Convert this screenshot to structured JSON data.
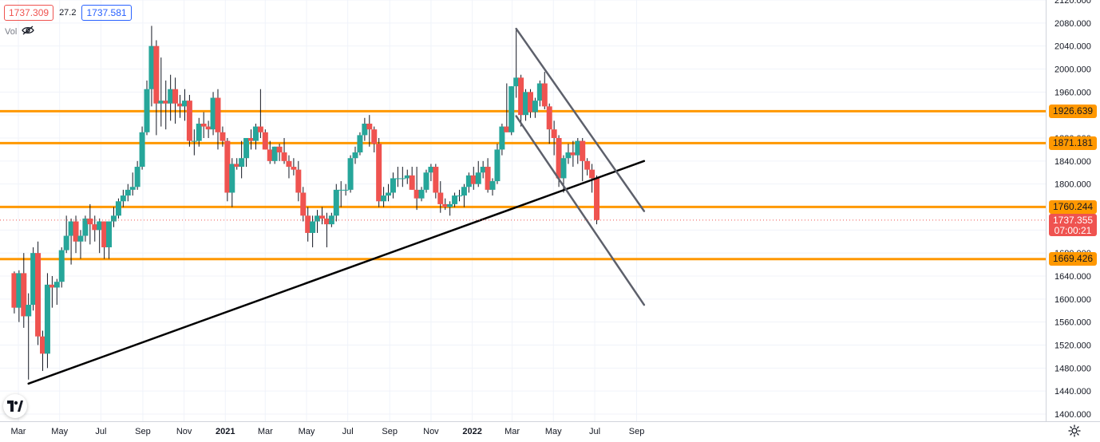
{
  "header": {
    "sell_price": "1737.309",
    "spread": "27.2",
    "buy_price": "1737.581",
    "vol_label": "Vol"
  },
  "colors": {
    "up": "#26a69a",
    "down": "#ef5350",
    "level_line": "#ff9800",
    "trend_line": "#000000",
    "channel_line": "#5d606b",
    "price_marker": "#ef5350"
  },
  "axis": {
    "y_ticks": [
      "2120.000",
      "2080.000",
      "2040.000",
      "2000.000",
      "1960.000",
      "1920.000",
      "1880.000",
      "1840.000",
      "1800.000",
      "1760.000",
      "1720.000",
      "1680.000",
      "1640.000",
      "1600.000",
      "1560.000",
      "1520.000",
      "1480.000",
      "1440.000",
      "1400.000"
    ],
    "x_ticks": [
      "Mar",
      "May",
      "Jul",
      "Sep",
      "Nov",
      "2021",
      "Mar",
      "May",
      "Jul",
      "Sep",
      "Nov",
      "2022",
      "Mar",
      "May",
      "Jul",
      "Sep"
    ]
  },
  "levels": [
    {
      "value": 1926.639,
      "label": "1926.639"
    },
    {
      "value": 1871.181,
      "label": "1871.181"
    },
    {
      "value": 1760.244,
      "label": "1760.244"
    },
    {
      "value": 1669.426,
      "label": "1669.426"
    }
  ],
  "current_price": {
    "value": 1737.355,
    "label": "1737.355",
    "countdown": "07:00:21"
  },
  "chart_data": {
    "type": "candlestick",
    "interval": "weekly",
    "y_range": [
      1400,
      2120
    ],
    "x_range": [
      "2020-02-24",
      "2022-09-12"
    ],
    "candles": [
      {
        "date": "2020-02-24",
        "o": 1645,
        "h": 1648,
        "l": 1575,
        "c": 1585
      },
      {
        "date": "2020-03-02",
        "o": 1585,
        "h": 1650,
        "l": 1560,
        "c": 1645
      },
      {
        "date": "2020-03-09",
        "o": 1645,
        "h": 1680,
        "l": 1550,
        "c": 1570
      },
      {
        "date": "2020-03-16",
        "o": 1570,
        "h": 1610,
        "l": 1460,
        "c": 1590
      },
      {
        "date": "2020-03-23",
        "o": 1590,
        "h": 1690,
        "l": 1580,
        "c": 1680
      },
      {
        "date": "2020-03-30",
        "o": 1680,
        "h": 1700,
        "l": 1520,
        "c": 1535
      },
      {
        "date": "2020-04-06",
        "o": 1535,
        "h": 1545,
        "l": 1475,
        "c": 1505
      },
      {
        "date": "2020-04-13",
        "o": 1505,
        "h": 1645,
        "l": 1480,
        "c": 1625
      },
      {
        "date": "2020-04-20",
        "o": 1625,
        "h": 1640,
        "l": 1585,
        "c": 1620
      },
      {
        "date": "2020-04-27",
        "o": 1620,
        "h": 1635,
        "l": 1590,
        "c": 1630
      },
      {
        "date": "2020-05-04",
        "o": 1630,
        "h": 1690,
        "l": 1620,
        "c": 1685
      },
      {
        "date": "2020-05-11",
        "o": 1685,
        "h": 1745,
        "l": 1680,
        "c": 1710
      },
      {
        "date": "2020-05-18",
        "o": 1710,
        "h": 1740,
        "l": 1660,
        "c": 1735
      },
      {
        "date": "2020-05-25",
        "o": 1735,
        "h": 1745,
        "l": 1680,
        "c": 1700
      },
      {
        "date": "2020-06-01",
        "o": 1700,
        "h": 1720,
        "l": 1670,
        "c": 1710
      },
      {
        "date": "2020-06-08",
        "o": 1710,
        "h": 1745,
        "l": 1700,
        "c": 1740
      },
      {
        "date": "2020-06-15",
        "o": 1740,
        "h": 1765,
        "l": 1695,
        "c": 1730
      },
      {
        "date": "2020-06-22",
        "o": 1730,
        "h": 1745,
        "l": 1700,
        "c": 1720
      },
      {
        "date": "2020-06-29",
        "o": 1720,
        "h": 1740,
        "l": 1680,
        "c": 1735
      },
      {
        "date": "2020-07-06",
        "o": 1735,
        "h": 1735,
        "l": 1670,
        "c": 1690
      },
      {
        "date": "2020-07-13",
        "o": 1690,
        "h": 1735,
        "l": 1670,
        "c": 1735
      },
      {
        "date": "2020-07-20",
        "o": 1735,
        "h": 1760,
        "l": 1725,
        "c": 1745
      },
      {
        "date": "2020-07-27",
        "o": 1745,
        "h": 1775,
        "l": 1740,
        "c": 1770
      },
      {
        "date": "2020-08-03",
        "o": 1770,
        "h": 1790,
        "l": 1760,
        "c": 1780
      },
      {
        "date": "2020-08-10",
        "o": 1780,
        "h": 1800,
        "l": 1770,
        "c": 1790
      },
      {
        "date": "2020-08-17",
        "o": 1790,
        "h": 1820,
        "l": 1780,
        "c": 1795
      },
      {
        "date": "2020-08-24",
        "o": 1795,
        "h": 1840,
        "l": 1790,
        "c": 1830
      },
      {
        "date": "2020-08-31",
        "o": 1830,
        "h": 1900,
        "l": 1825,
        "c": 1890
      },
      {
        "date": "2020-09-07",
        "o": 1890,
        "h": 1980,
        "l": 1885,
        "c": 1965
      },
      {
        "date": "2020-09-14",
        "o": 1965,
        "h": 2075,
        "l": 1935,
        "c": 2040
      },
      {
        "date": "2020-09-21",
        "o": 2040,
        "h": 2050,
        "l": 1885,
        "c": 1940
      },
      {
        "date": "2020-09-28",
        "o": 1940,
        "h": 2020,
        "l": 1900,
        "c": 1945
      },
      {
        "date": "2020-10-05",
        "o": 1945,
        "h": 1980,
        "l": 1895,
        "c": 1940
      },
      {
        "date": "2020-10-12",
        "o": 1940,
        "h": 1990,
        "l": 1910,
        "c": 1965
      },
      {
        "date": "2020-10-19",
        "o": 1965,
        "h": 1985,
        "l": 1905,
        "c": 1940
      },
      {
        "date": "2020-10-26",
        "o": 1940,
        "h": 1955,
        "l": 1915,
        "c": 1935
      },
      {
        "date": "2020-11-02",
        "o": 1935,
        "h": 1965,
        "l": 1910,
        "c": 1945
      },
      {
        "date": "2020-11-09",
        "o": 1945,
        "h": 1955,
        "l": 1865,
        "c": 1875
      },
      {
        "date": "2020-11-16",
        "o": 1875,
        "h": 1895,
        "l": 1850,
        "c": 1875
      },
      {
        "date": "2020-11-23",
        "o": 1875,
        "h": 1915,
        "l": 1865,
        "c": 1905
      },
      {
        "date": "2020-11-30",
        "o": 1905,
        "h": 1925,
        "l": 1880,
        "c": 1900
      },
      {
        "date": "2020-12-07",
        "o": 1900,
        "h": 1910,
        "l": 1880,
        "c": 1895
      },
      {
        "date": "2020-12-14",
        "o": 1895,
        "h": 1960,
        "l": 1885,
        "c": 1950
      },
      {
        "date": "2020-12-21",
        "o": 1950,
        "h": 1965,
        "l": 1860,
        "c": 1890
      },
      {
        "date": "2020-12-28",
        "o": 1890,
        "h": 1900,
        "l": 1865,
        "c": 1875
      },
      {
        "date": "2021-01-04",
        "o": 1875,
        "h": 1880,
        "l": 1770,
        "c": 1785
      },
      {
        "date": "2021-01-11",
        "o": 1785,
        "h": 1845,
        "l": 1760,
        "c": 1835
      },
      {
        "date": "2021-01-18",
        "o": 1835,
        "h": 1845,
        "l": 1825,
        "c": 1830
      },
      {
        "date": "2021-01-25",
        "o": 1830,
        "h": 1875,
        "l": 1810,
        "c": 1845
      },
      {
        "date": "2021-02-01",
        "o": 1845,
        "h": 1880,
        "l": 1830,
        "c": 1880
      },
      {
        "date": "2021-02-08",
        "o": 1880,
        "h": 1895,
        "l": 1860,
        "c": 1875
      },
      {
        "date": "2021-02-15",
        "o": 1875,
        "h": 1905,
        "l": 1860,
        "c": 1900
      },
      {
        "date": "2021-02-22",
        "o": 1900,
        "h": 1965,
        "l": 1880,
        "c": 1890
      },
      {
        "date": "2021-03-01",
        "o": 1890,
        "h": 1895,
        "l": 1860,
        "c": 1860
      },
      {
        "date": "2021-03-08",
        "o": 1860,
        "h": 1875,
        "l": 1835,
        "c": 1840
      },
      {
        "date": "2021-03-15",
        "o": 1840,
        "h": 1865,
        "l": 1835,
        "c": 1865
      },
      {
        "date": "2021-03-22",
        "o": 1865,
        "h": 1870,
        "l": 1840,
        "c": 1855
      },
      {
        "date": "2021-03-29",
        "o": 1855,
        "h": 1880,
        "l": 1835,
        "c": 1840
      },
      {
        "date": "2021-04-05",
        "o": 1840,
        "h": 1850,
        "l": 1810,
        "c": 1830
      },
      {
        "date": "2021-04-12",
        "o": 1830,
        "h": 1845,
        "l": 1815,
        "c": 1825
      },
      {
        "date": "2021-04-19",
        "o": 1825,
        "h": 1840,
        "l": 1770,
        "c": 1785
      },
      {
        "date": "2021-04-26",
        "o": 1785,
        "h": 1795,
        "l": 1735,
        "c": 1745
      },
      {
        "date": "2021-05-03",
        "o": 1745,
        "h": 1760,
        "l": 1700,
        "c": 1715
      },
      {
        "date": "2021-05-10",
        "o": 1715,
        "h": 1745,
        "l": 1690,
        "c": 1735
      },
      {
        "date": "2021-05-17",
        "o": 1735,
        "h": 1755,
        "l": 1715,
        "c": 1745
      },
      {
        "date": "2021-05-24",
        "o": 1745,
        "h": 1760,
        "l": 1730,
        "c": 1740
      },
      {
        "date": "2021-05-31",
        "o": 1740,
        "h": 1750,
        "l": 1690,
        "c": 1730
      },
      {
        "date": "2021-06-07",
        "o": 1730,
        "h": 1750,
        "l": 1725,
        "c": 1745
      },
      {
        "date": "2021-06-14",
        "o": 1745,
        "h": 1800,
        "l": 1735,
        "c": 1790
      },
      {
        "date": "2021-06-21",
        "o": 1790,
        "h": 1805,
        "l": 1760,
        "c": 1790
      },
      {
        "date": "2021-06-28",
        "o": 1790,
        "h": 1800,
        "l": 1780,
        "c": 1790
      },
      {
        "date": "2021-07-05",
        "o": 1790,
        "h": 1850,
        "l": 1785,
        "c": 1845
      },
      {
        "date": "2021-07-12",
        "o": 1845,
        "h": 1865,
        "l": 1835,
        "c": 1855
      },
      {
        "date": "2021-07-19",
        "o": 1855,
        "h": 1890,
        "l": 1850,
        "c": 1885
      },
      {
        "date": "2021-07-26",
        "o": 1885,
        "h": 1915,
        "l": 1875,
        "c": 1905
      },
      {
        "date": "2021-08-02",
        "o": 1905,
        "h": 1920,
        "l": 1865,
        "c": 1895
      },
      {
        "date": "2021-08-09",
        "o": 1895,
        "h": 1900,
        "l": 1855,
        "c": 1870
      },
      {
        "date": "2021-08-16",
        "o": 1870,
        "h": 1880,
        "l": 1760,
        "c": 1770
      },
      {
        "date": "2021-08-23",
        "o": 1770,
        "h": 1795,
        "l": 1760,
        "c": 1780
      },
      {
        "date": "2021-08-30",
        "o": 1780,
        "h": 1800,
        "l": 1770,
        "c": 1785
      },
      {
        "date": "2021-09-06",
        "o": 1785,
        "h": 1820,
        "l": 1775,
        "c": 1810
      },
      {
        "date": "2021-09-13",
        "o": 1810,
        "h": 1830,
        "l": 1795,
        "c": 1810
      },
      {
        "date": "2021-09-20",
        "o": 1810,
        "h": 1830,
        "l": 1795,
        "c": 1810
      },
      {
        "date": "2021-09-27",
        "o": 1810,
        "h": 1825,
        "l": 1800,
        "c": 1815
      },
      {
        "date": "2021-10-04",
        "o": 1815,
        "h": 1830,
        "l": 1790,
        "c": 1790
      },
      {
        "date": "2021-10-11",
        "o": 1790,
        "h": 1830,
        "l": 1755,
        "c": 1775
      },
      {
        "date": "2021-10-18",
        "o": 1775,
        "h": 1795,
        "l": 1770,
        "c": 1790
      },
      {
        "date": "2021-10-25",
        "o": 1790,
        "h": 1825,
        "l": 1785,
        "c": 1820
      },
      {
        "date": "2021-11-01",
        "o": 1820,
        "h": 1835,
        "l": 1805,
        "c": 1830
      },
      {
        "date": "2021-11-08",
        "o": 1830,
        "h": 1835,
        "l": 1775,
        "c": 1785
      },
      {
        "date": "2021-11-15",
        "o": 1785,
        "h": 1805,
        "l": 1750,
        "c": 1765
      },
      {
        "date": "2021-11-22",
        "o": 1765,
        "h": 1775,
        "l": 1755,
        "c": 1760
      },
      {
        "date": "2021-11-29",
        "o": 1760,
        "h": 1770,
        "l": 1745,
        "c": 1765
      },
      {
        "date": "2021-12-06",
        "o": 1765,
        "h": 1785,
        "l": 1760,
        "c": 1780
      },
      {
        "date": "2021-12-13",
        "o": 1780,
        "h": 1790,
        "l": 1770,
        "c": 1780
      },
      {
        "date": "2021-12-20",
        "o": 1780,
        "h": 1800,
        "l": 1760,
        "c": 1795
      },
      {
        "date": "2021-12-27",
        "o": 1795,
        "h": 1820,
        "l": 1785,
        "c": 1815
      },
      {
        "date": "2022-01-03",
        "o": 1815,
        "h": 1830,
        "l": 1790,
        "c": 1800
      },
      {
        "date": "2022-01-10",
        "o": 1800,
        "h": 1840,
        "l": 1795,
        "c": 1820
      },
      {
        "date": "2022-01-17",
        "o": 1820,
        "h": 1840,
        "l": 1810,
        "c": 1830
      },
      {
        "date": "2022-01-24",
        "o": 1830,
        "h": 1845,
        "l": 1785,
        "c": 1790
      },
      {
        "date": "2022-01-31",
        "o": 1790,
        "h": 1810,
        "l": 1780,
        "c": 1805
      },
      {
        "date": "2022-02-07",
        "o": 1805,
        "h": 1870,
        "l": 1800,
        "c": 1860
      },
      {
        "date": "2022-02-14",
        "o": 1860,
        "h": 1905,
        "l": 1850,
        "c": 1900
      },
      {
        "date": "2022-02-21",
        "o": 1900,
        "h": 1975,
        "l": 1890,
        "c": 1890
      },
      {
        "date": "2022-02-28",
        "o": 1890,
        "h": 1970,
        "l": 1885,
        "c": 1970
      },
      {
        "date": "2022-03-07",
        "o": 1970,
        "h": 2070,
        "l": 1950,
        "c": 1985
      },
      {
        "date": "2022-03-14",
        "o": 1985,
        "h": 1990,
        "l": 1900,
        "c": 1920
      },
      {
        "date": "2022-03-21",
        "o": 1920,
        "h": 1965,
        "l": 1910,
        "c": 1960
      },
      {
        "date": "2022-03-28",
        "o": 1960,
        "h": 1965,
        "l": 1915,
        "c": 1925
      },
      {
        "date": "2022-04-04",
        "o": 1925,
        "h": 1950,
        "l": 1915,
        "c": 1945
      },
      {
        "date": "2022-04-11",
        "o": 1945,
        "h": 1980,
        "l": 1935,
        "c": 1975
      },
      {
        "date": "2022-04-18",
        "o": 1975,
        "h": 1995,
        "l": 1930,
        "c": 1935
      },
      {
        "date": "2022-04-25",
        "o": 1935,
        "h": 1940,
        "l": 1870,
        "c": 1895
      },
      {
        "date": "2022-05-02",
        "o": 1895,
        "h": 1910,
        "l": 1850,
        "c": 1880
      },
      {
        "date": "2022-05-09",
        "o": 1880,
        "h": 1885,
        "l": 1795,
        "c": 1810
      },
      {
        "date": "2022-05-16",
        "o": 1810,
        "h": 1850,
        "l": 1785,
        "c": 1845
      },
      {
        "date": "2022-05-23",
        "o": 1845,
        "h": 1870,
        "l": 1835,
        "c": 1855
      },
      {
        "date": "2022-05-30",
        "o": 1855,
        "h": 1875,
        "l": 1830,
        "c": 1850
      },
      {
        "date": "2022-06-06",
        "o": 1850,
        "h": 1880,
        "l": 1835,
        "c": 1875
      },
      {
        "date": "2022-06-13",
        "o": 1875,
        "h": 1880,
        "l": 1805,
        "c": 1840
      },
      {
        "date": "2022-06-20",
        "o": 1840,
        "h": 1845,
        "l": 1815,
        "c": 1825
      },
      {
        "date": "2022-06-27",
        "o": 1825,
        "h": 1835,
        "l": 1785,
        "c": 1810
      },
      {
        "date": "2022-07-04",
        "o": 1810,
        "h": 1815,
        "l": 1730,
        "c": 1737.355
      }
    ],
    "trend_line": {
      "from": {
        "date": "2020-03-16",
        "price": 1453
      },
      "to": {
        "date": "2022-09-12",
        "price": 1840
      }
    },
    "channel_upper": {
      "from": {
        "date": "2022-03-07",
        "price": 2070
      },
      "to": {
        "date": "2022-09-12",
        "price": 1753
      }
    },
    "channel_lower": {
      "from": {
        "date": "2022-03-07",
        "price": 1918
      },
      "to": {
        "date": "2022-09-12",
        "price": 1590
      }
    }
  }
}
